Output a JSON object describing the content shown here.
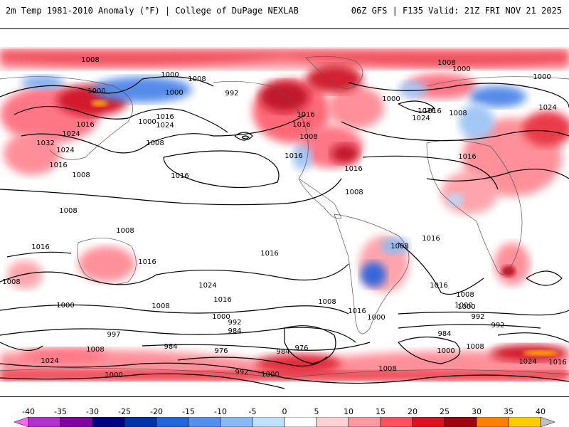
{
  "header": {
    "title_left": "2m Temp 1981-2010 Anomaly (°F) | College of DuPage NEXLAB",
    "title_right": "06Z GFS | F135 Valid: 21Z FRI NOV 21 2025"
  },
  "colorbar": {
    "ticks": [
      "-40",
      "-35",
      "-30",
      "-25",
      "-20",
      "-15",
      "-10",
      "-5",
      "0",
      "5",
      "10",
      "15",
      "20",
      "25",
      "30",
      "35",
      "40"
    ],
    "colors": [
      "#ff66ff",
      "#b030d0",
      "#8000a0",
      "#000080",
      "#0033aa",
      "#2266dd",
      "#5590ee",
      "#88bbf5",
      "#bfe0ff",
      "#ffffff",
      "#ffd0d4",
      "#ff99a0",
      "#ff5060",
      "#e01020",
      "#a00010",
      "#ff8000",
      "#ffcc00",
      "#c0c0c0"
    ]
  },
  "map": {
    "contour_labels": [
      {
        "text": "1008"
      },
      {
        "text": "1000"
      },
      {
        "text": "1008"
      },
      {
        "text": "1000"
      },
      {
        "text": "992"
      },
      {
        "text": "1000"
      },
      {
        "text": "1016"
      },
      {
        "text": "1024"
      },
      {
        "text": "1016"
      },
      {
        "text": "1024"
      },
      {
        "text": "1032"
      },
      {
        "text": "1024"
      },
      {
        "text": "1016"
      },
      {
        "text": "1008"
      },
      {
        "text": "1016"
      },
      {
        "text": "1008"
      },
      {
        "text": "1016"
      },
      {
        "text": "1016"
      },
      {
        "text": "1008"
      },
      {
        "text": "1008"
      },
      {
        "text": "1008"
      },
      {
        "text": "1000"
      },
      {
        "text": "1016"
      },
      {
        "text": "1008"
      },
      {
        "text": "1024"
      },
      {
        "text": "1000"
      },
      {
        "text": "1008"
      },
      {
        "text": "1016"
      },
      {
        "text": "1000"
      },
      {
        "text": "1000"
      },
      {
        "text": "1024"
      },
      {
        "text": "1016"
      },
      {
        "text": "1016"
      },
      {
        "text": "1016"
      },
      {
        "text": "1016"
      },
      {
        "text": "1008"
      },
      {
        "text": "1008"
      },
      {
        "text": "1016"
      },
      {
        "text": "1016"
      },
      {
        "text": "1008"
      },
      {
        "text": "1016"
      },
      {
        "text": "1024"
      },
      {
        "text": "1016"
      },
      {
        "text": "1008"
      },
      {
        "text": "1000"
      },
      {
        "text": "992"
      },
      {
        "text": "984"
      },
      {
        "text": "1000"
      },
      {
        "text": "1008"
      },
      {
        "text": "1016"
      },
      {
        "text": "1016"
      },
      {
        "text": "1000"
      },
      {
        "text": "1008"
      },
      {
        "text": "1000"
      },
      {
        "text": "992"
      },
      {
        "text": "984"
      },
      {
        "text": "992"
      },
      {
        "text": "1000"
      },
      {
        "text": "1008"
      },
      {
        "text": "1000"
      },
      {
        "text": "997"
      },
      {
        "text": "1008"
      },
      {
        "text": "984"
      },
      {
        "text": "976"
      },
      {
        "text": "984"
      },
      {
        "text": "976"
      },
      {
        "text": "1024"
      },
      {
        "text": "1000"
      },
      {
        "text": "992"
      },
      {
        "text": "1000"
      },
      {
        "text": "1008"
      },
      {
        "text": "1024"
      },
      {
        "text": "1016"
      }
    ]
  }
}
